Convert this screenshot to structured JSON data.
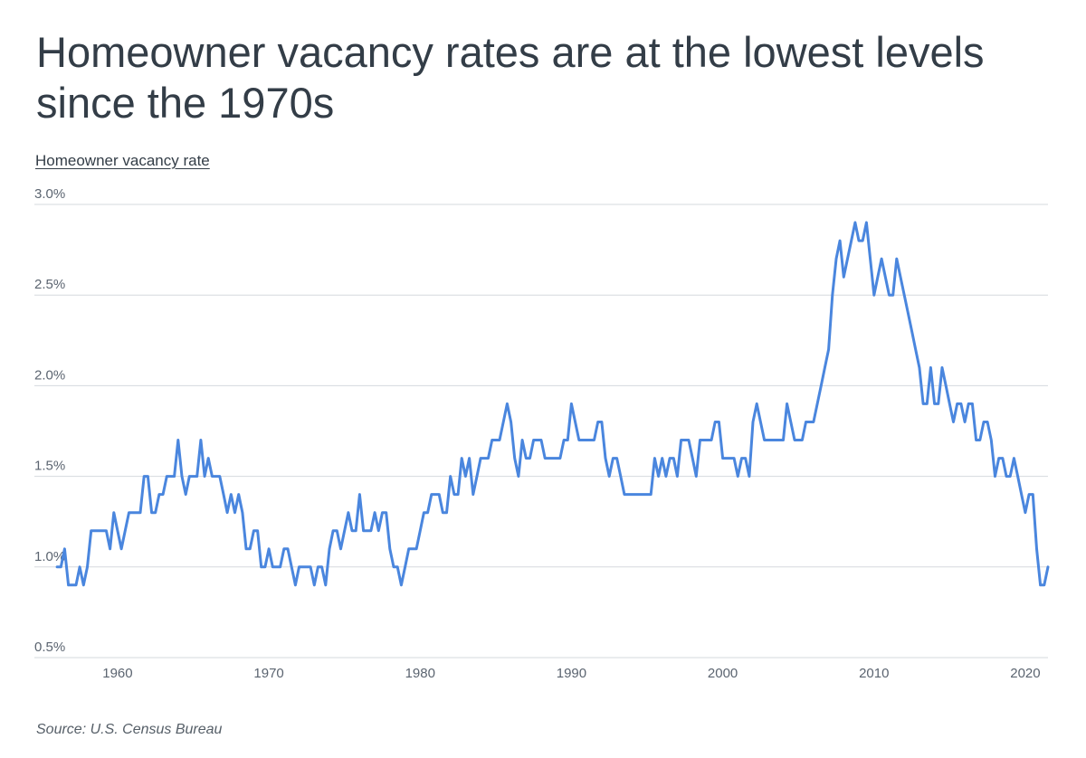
{
  "title": "Homeowner vacancy rates are at the lowest levels since the 1970s",
  "source": "Source: U.S. Census Bureau",
  "colors": {
    "line": "#4a86de",
    "grid": "#d5d9de",
    "text": "#333d47"
  },
  "chart_data": {
    "type": "line",
    "title": "Homeowner vacancy rates are at the lowest levels since the 1970s",
    "ylabel": "Homeowner vacancy rate",
    "xlabel": "",
    "ylim": [
      0.5,
      3.0
    ],
    "xlim": [
      1954.5,
      2021.5
    ],
    "grid": true,
    "x_ticks": [
      1960,
      1970,
      1980,
      1990,
      2000,
      2010,
      2020
    ],
    "x_tick_labels": [
      "1960",
      "1970",
      "1980",
      "1990",
      "2000",
      "2010",
      "2020"
    ],
    "y_ticks": [
      0.5,
      1.0,
      1.5,
      2.0,
      2.5,
      3.0
    ],
    "y_tick_labels": [
      "0.5%",
      "1.0%",
      "1.5%",
      "2.0%",
      "2.5%",
      "3.0%"
    ],
    "series": [
      {
        "points": [
          [
            1956.0,
            1.0
          ],
          [
            1956.25,
            1.0
          ],
          [
            1956.5,
            1.1
          ],
          [
            1956.75,
            0.9
          ],
          [
            1957.0,
            0.9
          ],
          [
            1957.25,
            0.9
          ],
          [
            1957.5,
            1.0
          ],
          [
            1957.75,
            0.9
          ],
          [
            1958.0,
            1.0
          ],
          [
            1958.25,
            1.2
          ],
          [
            1958.5,
            1.2
          ],
          [
            1958.75,
            1.2
          ],
          [
            1959.0,
            1.2
          ],
          [
            1959.25,
            1.2
          ],
          [
            1959.5,
            1.1
          ],
          [
            1959.75,
            1.3
          ],
          [
            1960.0,
            1.2
          ],
          [
            1960.25,
            1.1
          ],
          [
            1960.5,
            1.2
          ],
          [
            1960.75,
            1.3
          ],
          [
            1961.0,
            1.3
          ],
          [
            1961.25,
            1.3
          ],
          [
            1961.5,
            1.3
          ],
          [
            1961.75,
            1.5
          ],
          [
            1962.0,
            1.5
          ],
          [
            1962.25,
            1.3
          ],
          [
            1962.5,
            1.3
          ],
          [
            1962.75,
            1.4
          ],
          [
            1963.0,
            1.4
          ],
          [
            1963.25,
            1.5
          ],
          [
            1963.5,
            1.5
          ],
          [
            1963.75,
            1.5
          ],
          [
            1964.0,
            1.7
          ],
          [
            1964.25,
            1.5
          ],
          [
            1964.5,
            1.4
          ],
          [
            1964.75,
            1.5
          ],
          [
            1965.0,
            1.5
          ],
          [
            1965.25,
            1.5
          ],
          [
            1965.5,
            1.7
          ],
          [
            1965.75,
            1.5
          ],
          [
            1966.0,
            1.6
          ],
          [
            1966.25,
            1.5
          ],
          [
            1966.5,
            1.5
          ],
          [
            1966.75,
            1.5
          ],
          [
            1967.0,
            1.4
          ],
          [
            1967.25,
            1.3
          ],
          [
            1967.5,
            1.4
          ],
          [
            1967.75,
            1.3
          ],
          [
            1968.0,
            1.4
          ],
          [
            1968.25,
            1.3
          ],
          [
            1968.5,
            1.1
          ],
          [
            1968.75,
            1.1
          ],
          [
            1969.0,
            1.2
          ],
          [
            1969.25,
            1.2
          ],
          [
            1969.5,
            1.0
          ],
          [
            1969.75,
            1.0
          ],
          [
            1970.0,
            1.1
          ],
          [
            1970.25,
            1.0
          ],
          [
            1970.5,
            1.0
          ],
          [
            1970.75,
            1.0
          ],
          [
            1971.0,
            1.1
          ],
          [
            1971.25,
            1.1
          ],
          [
            1971.5,
            1.0
          ],
          [
            1971.75,
            0.9
          ],
          [
            1972.0,
            1.0
          ],
          [
            1972.25,
            1.0
          ],
          [
            1972.5,
            1.0
          ],
          [
            1972.75,
            1.0
          ],
          [
            1973.0,
            0.9
          ],
          [
            1973.25,
            1.0
          ],
          [
            1973.5,
            1.0
          ],
          [
            1973.75,
            0.9
          ],
          [
            1974.0,
            1.1
          ],
          [
            1974.25,
            1.2
          ],
          [
            1974.5,
            1.2
          ],
          [
            1974.75,
            1.1
          ],
          [
            1975.0,
            1.2
          ],
          [
            1975.25,
            1.3
          ],
          [
            1975.5,
            1.2
          ],
          [
            1975.75,
            1.2
          ],
          [
            1976.0,
            1.4
          ],
          [
            1976.25,
            1.2
          ],
          [
            1976.5,
            1.2
          ],
          [
            1976.75,
            1.2
          ],
          [
            1977.0,
            1.3
          ],
          [
            1977.25,
            1.2
          ],
          [
            1977.5,
            1.3
          ],
          [
            1977.75,
            1.3
          ],
          [
            1978.0,
            1.1
          ],
          [
            1978.25,
            1.0
          ],
          [
            1978.5,
            1.0
          ],
          [
            1978.75,
            0.9
          ],
          [
            1979.0,
            1.0
          ],
          [
            1979.25,
            1.1
          ],
          [
            1979.5,
            1.1
          ],
          [
            1979.75,
            1.1
          ],
          [
            1980.0,
            1.2
          ],
          [
            1980.25,
            1.3
          ],
          [
            1980.5,
            1.3
          ],
          [
            1980.75,
            1.4
          ],
          [
            1981.0,
            1.4
          ],
          [
            1981.25,
            1.4
          ],
          [
            1981.5,
            1.3
          ],
          [
            1981.75,
            1.3
          ],
          [
            1982.0,
            1.5
          ],
          [
            1982.25,
            1.4
          ],
          [
            1982.5,
            1.4
          ],
          [
            1982.75,
            1.6
          ],
          [
            1983.0,
            1.5
          ],
          [
            1983.25,
            1.6
          ],
          [
            1983.5,
            1.4
          ],
          [
            1983.75,
            1.5
          ],
          [
            1984.0,
            1.6
          ],
          [
            1984.25,
            1.6
          ],
          [
            1984.5,
            1.6
          ],
          [
            1984.75,
            1.7
          ],
          [
            1985.0,
            1.7
          ],
          [
            1985.25,
            1.7
          ],
          [
            1985.5,
            1.8
          ],
          [
            1985.75,
            1.9
          ],
          [
            1986.0,
            1.8
          ],
          [
            1986.25,
            1.6
          ],
          [
            1986.5,
            1.5
          ],
          [
            1986.75,
            1.7
          ],
          [
            1987.0,
            1.6
          ],
          [
            1987.25,
            1.6
          ],
          [
            1987.5,
            1.7
          ],
          [
            1987.75,
            1.7
          ],
          [
            1988.0,
            1.7
          ],
          [
            1988.25,
            1.6
          ],
          [
            1988.5,
            1.6
          ],
          [
            1988.75,
            1.6
          ],
          [
            1989.0,
            1.6
          ],
          [
            1989.25,
            1.6
          ],
          [
            1989.5,
            1.7
          ],
          [
            1989.75,
            1.7
          ],
          [
            1990.0,
            1.9
          ],
          [
            1990.25,
            1.8
          ],
          [
            1990.5,
            1.7
          ],
          [
            1990.75,
            1.7
          ],
          [
            1991.0,
            1.7
          ],
          [
            1991.25,
            1.7
          ],
          [
            1991.5,
            1.7
          ],
          [
            1991.75,
            1.8
          ],
          [
            1992.0,
            1.8
          ],
          [
            1992.25,
            1.6
          ],
          [
            1992.5,
            1.5
          ],
          [
            1992.75,
            1.6
          ],
          [
            1993.0,
            1.6
          ],
          [
            1993.25,
            1.5
          ],
          [
            1993.5,
            1.4
          ],
          [
            1993.75,
            1.4
          ],
          [
            1994.0,
            1.4
          ],
          [
            1994.25,
            1.4
          ],
          [
            1994.5,
            1.4
          ],
          [
            1994.75,
            1.4
          ],
          [
            1995.0,
            1.4
          ],
          [
            1995.25,
            1.4
          ],
          [
            1995.5,
            1.6
          ],
          [
            1995.75,
            1.5
          ],
          [
            1996.0,
            1.6
          ],
          [
            1996.25,
            1.5
          ],
          [
            1996.5,
            1.6
          ],
          [
            1996.75,
            1.6
          ],
          [
            1997.0,
            1.5
          ],
          [
            1997.25,
            1.7
          ],
          [
            1997.5,
            1.7
          ],
          [
            1997.75,
            1.7
          ],
          [
            1998.0,
            1.6
          ],
          [
            1998.25,
            1.5
          ],
          [
            1998.5,
            1.7
          ],
          [
            1998.75,
            1.7
          ],
          [
            1999.0,
            1.7
          ],
          [
            1999.25,
            1.7
          ],
          [
            1999.5,
            1.8
          ],
          [
            1999.75,
            1.8
          ],
          [
            2000.0,
            1.6
          ],
          [
            2000.25,
            1.6
          ],
          [
            2000.5,
            1.6
          ],
          [
            2000.75,
            1.6
          ],
          [
            2001.0,
            1.5
          ],
          [
            2001.25,
            1.6
          ],
          [
            2001.5,
            1.6
          ],
          [
            2001.75,
            1.5
          ],
          [
            2002.0,
            1.8
          ],
          [
            2002.25,
            1.9
          ],
          [
            2002.5,
            1.8
          ],
          [
            2002.75,
            1.7
          ],
          [
            2003.0,
            1.7
          ],
          [
            2003.25,
            1.7
          ],
          [
            2003.5,
            1.7
          ],
          [
            2003.75,
            1.7
          ],
          [
            2004.0,
            1.7
          ],
          [
            2004.25,
            1.9
          ],
          [
            2004.5,
            1.8
          ],
          [
            2004.75,
            1.7
          ],
          [
            2005.0,
            1.7
          ],
          [
            2005.25,
            1.7
          ],
          [
            2005.5,
            1.8
          ],
          [
            2005.75,
            1.8
          ],
          [
            2006.0,
            1.8
          ],
          [
            2006.25,
            1.9
          ],
          [
            2006.5,
            2.0
          ],
          [
            2006.75,
            2.1
          ],
          [
            2007.0,
            2.2
          ],
          [
            2007.25,
            2.5
          ],
          [
            2007.5,
            2.7
          ],
          [
            2007.75,
            2.8
          ],
          [
            2008.0,
            2.6
          ],
          [
            2008.25,
            2.7
          ],
          [
            2008.5,
            2.8
          ],
          [
            2008.75,
            2.9
          ],
          [
            2009.0,
            2.8
          ],
          [
            2009.25,
            2.8
          ],
          [
            2009.5,
            2.9
          ],
          [
            2009.75,
            2.7
          ],
          [
            2010.0,
            2.5
          ],
          [
            2010.25,
            2.6
          ],
          [
            2010.5,
            2.7
          ],
          [
            2010.75,
            2.6
          ],
          [
            2011.0,
            2.5
          ],
          [
            2011.25,
            2.5
          ],
          [
            2011.5,
            2.7
          ],
          [
            2011.75,
            2.6
          ],
          [
            2012.0,
            2.5
          ],
          [
            2012.25,
            2.4
          ],
          [
            2012.5,
            2.3
          ],
          [
            2012.75,
            2.2
          ],
          [
            2013.0,
            2.1
          ],
          [
            2013.25,
            1.9
          ],
          [
            2013.5,
            1.9
          ],
          [
            2013.75,
            2.1
          ],
          [
            2014.0,
            1.9
          ],
          [
            2014.25,
            1.9
          ],
          [
            2014.5,
            2.1
          ],
          [
            2014.75,
            2.0
          ],
          [
            2015.0,
            1.9
          ],
          [
            2015.25,
            1.8
          ],
          [
            2015.5,
            1.9
          ],
          [
            2015.75,
            1.9
          ],
          [
            2016.0,
            1.8
          ],
          [
            2016.25,
            1.9
          ],
          [
            2016.5,
            1.9
          ],
          [
            2016.75,
            1.7
          ],
          [
            2017.0,
            1.7
          ],
          [
            2017.25,
            1.8
          ],
          [
            2017.5,
            1.8
          ],
          [
            2017.75,
            1.7
          ],
          [
            2018.0,
            1.5
          ],
          [
            2018.25,
            1.6
          ],
          [
            2018.5,
            1.6
          ],
          [
            2018.75,
            1.5
          ],
          [
            2019.0,
            1.5
          ],
          [
            2019.25,
            1.6
          ],
          [
            2019.5,
            1.5
          ],
          [
            2019.75,
            1.4
          ],
          [
            2020.0,
            1.3
          ],
          [
            2020.25,
            1.4
          ],
          [
            2020.5,
            1.4
          ],
          [
            2020.75,
            1.1
          ],
          [
            2021.0,
            0.9
          ],
          [
            2021.25,
            0.9
          ],
          [
            2021.5,
            1.0
          ]
        ]
      }
    ]
  }
}
